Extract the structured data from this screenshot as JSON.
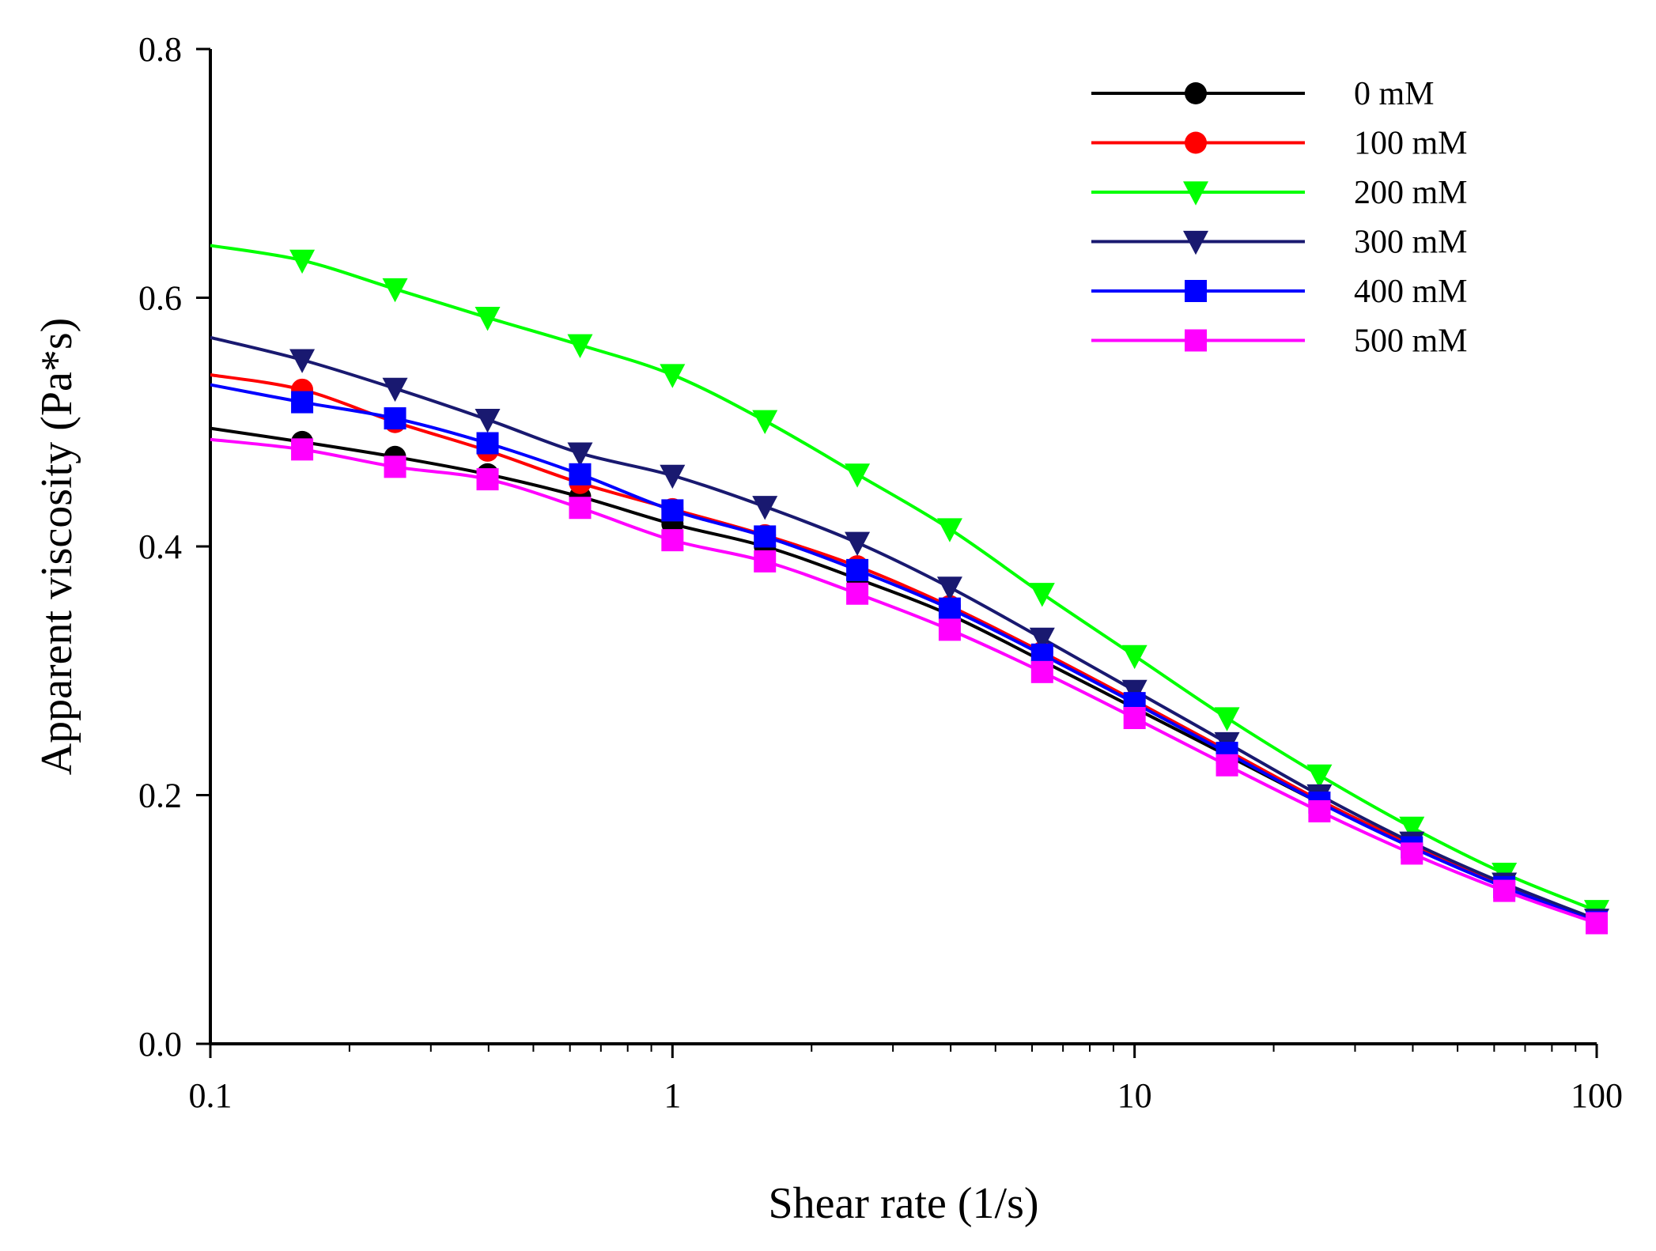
{
  "chart_data": {
    "type": "line",
    "title": "",
    "xlabel": "Shear rate (1/s)",
    "ylabel": "Apparent viscosity (Pa*s)",
    "xscale": "log",
    "xlim": [
      0.1,
      100
    ],
    "ylim": [
      0.0,
      0.8
    ],
    "xticks": [
      0.1,
      1,
      10,
      100
    ],
    "xtick_labels": [
      "0.1",
      "1",
      "10",
      "100"
    ],
    "yticks": [
      0.0,
      0.2,
      0.4,
      0.6,
      0.8
    ],
    "ytick_labels": [
      "0.0",
      "0.2",
      "0.4",
      "0.6",
      "0.8"
    ],
    "grid": false,
    "legend_position": "top-right",
    "x": [
      0.1,
      0.158,
      0.251,
      0.398,
      0.631,
      1.0,
      1.585,
      2.512,
      3.981,
      6.31,
      10.0,
      15.85,
      25.12,
      39.81,
      63.1,
      100.0
    ],
    "series": [
      {
        "name": "0 mM",
        "color": "#000000",
        "marker": "circle",
        "values": [
          0.495,
          0.484,
          0.472,
          0.458,
          0.44,
          0.418,
          0.4,
          0.374,
          0.345,
          0.308,
          0.27,
          0.232,
          0.194,
          0.159,
          0.127,
          0.099
        ]
      },
      {
        "name": "100 mM",
        "color": "#ff0000",
        "marker": "circle",
        "values": [
          0.538,
          0.526,
          0.5,
          0.477,
          0.451,
          0.43,
          0.409,
          0.384,
          0.352,
          0.315,
          0.276,
          0.236,
          0.196,
          0.16,
          0.128,
          0.099
        ]
      },
      {
        "name": "200 mM",
        "color": "#00ff00",
        "marker": "triangle-down",
        "values": [
          0.642,
          0.63,
          0.607,
          0.584,
          0.562,
          0.538,
          0.501,
          0.458,
          0.414,
          0.362,
          0.312,
          0.262,
          0.216,
          0.174,
          0.137,
          0.107
        ]
      },
      {
        "name": "300 mM",
        "color": "#191970",
        "marker": "triangle-down",
        "values": [
          0.568,
          0.55,
          0.527,
          0.502,
          0.475,
          0.457,
          0.432,
          0.403,
          0.367,
          0.326,
          0.284,
          0.242,
          0.2,
          0.162,
          0.129,
          0.1
        ]
      },
      {
        "name": "400 mM",
        "color": "#0000ff",
        "marker": "square",
        "values": [
          0.53,
          0.516,
          0.503,
          0.483,
          0.458,
          0.429,
          0.408,
          0.381,
          0.35,
          0.313,
          0.274,
          0.234,
          0.194,
          0.158,
          0.126,
          0.098
        ]
      },
      {
        "name": "500 mM",
        "color": "#ff00ff",
        "marker": "square",
        "values": [
          0.486,
          0.478,
          0.464,
          0.454,
          0.431,
          0.405,
          0.388,
          0.362,
          0.333,
          0.299,
          0.262,
          0.224,
          0.187,
          0.153,
          0.123,
          0.097
        ]
      }
    ]
  }
}
